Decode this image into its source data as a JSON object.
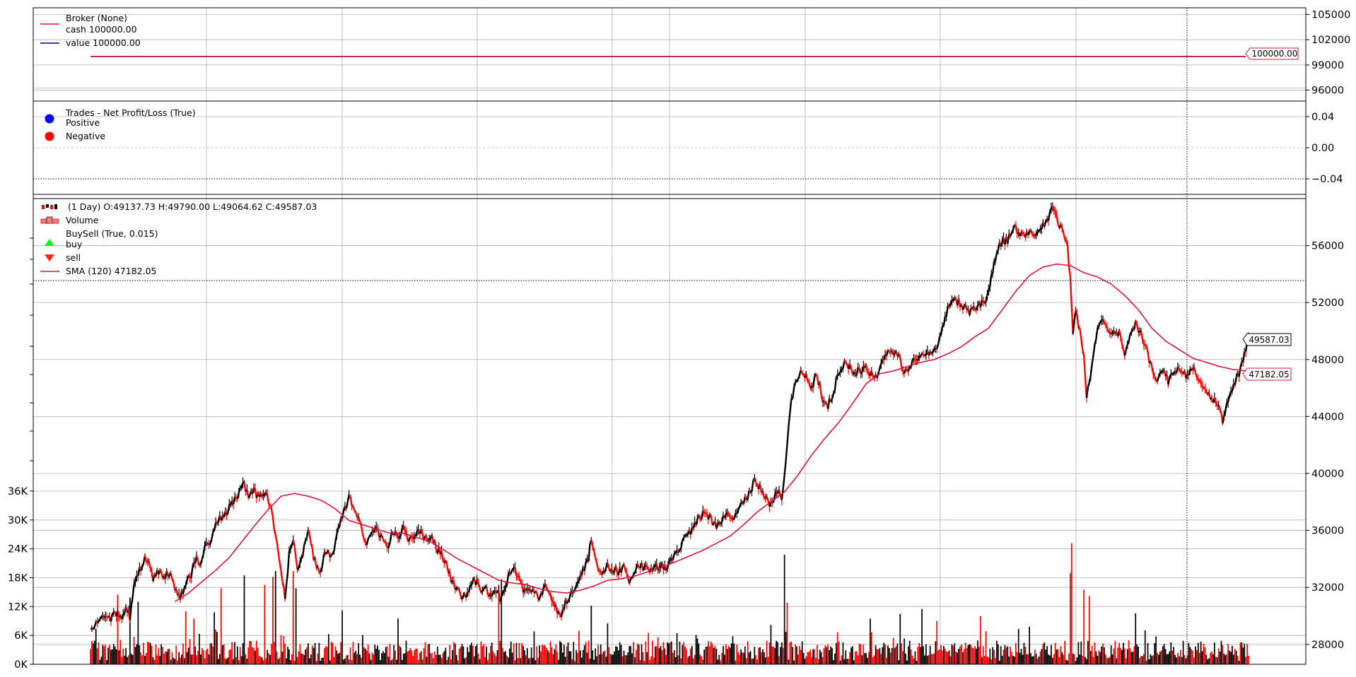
{
  "chart_data": [
    {
      "panel": "broker",
      "type": "line",
      "legend_title": "Broker (None)",
      "legend_location": "top-left",
      "grid": true,
      "y_ticks": [
        "96000",
        "99000",
        "102000",
        "105000"
      ],
      "ylim": [
        94700,
        105800
      ],
      "series": [
        {
          "name": "cash",
          "value_label": "100000.00",
          "color": "#dc143c",
          "values": [
            100000,
            100000
          ]
        },
        {
          "name": "value",
          "value_label": "100000.00",
          "color": "#00008b",
          "values": [
            100000,
            100000
          ]
        }
      ],
      "last_value_label": "100000.00"
    },
    {
      "panel": "trades",
      "type": "scatter",
      "legend_title": "Trades - Net Profit/Loss (True)",
      "legend_location": "top-left",
      "grid": true,
      "y_ticks": [
        "−0.04",
        "0.00",
        "0.04"
      ],
      "ylim": [
        -0.06,
        0.06
      ],
      "series": [
        {
          "name": "Positive",
          "color": "#0000ff",
          "values": []
        },
        {
          "name": "Negative",
          "color": "#ff0000",
          "values": []
        }
      ]
    },
    {
      "panel": "price",
      "type": "line",
      "legend_title": "(1 Day) O:49137.73 H:49790.00 L:49064.62 C:49587.03",
      "legend_location": "top-left",
      "grid": true,
      "legend_entries": [
        "Volume",
        "BuySell (True, 0.015)",
        "buy",
        "sell",
        "SMA (120) 47182.05"
      ],
      "y_ticks": [
        "28000",
        "32000",
        "36000",
        "40000",
        "44000",
        "48000",
        "52000",
        "56000"
      ],
      "ylim": [
        26600,
        59600
      ],
      "volume_ticks": [
        "0K",
        "6K",
        "12K",
        "18K",
        "24K",
        "30K",
        "36K"
      ],
      "volume_lim": [
        0,
        36000
      ],
      "price_anchors": [
        [
          0,
          29100
        ],
        [
          4,
          29600
        ],
        [
          10,
          29700
        ],
        [
          16,
          29900
        ],
        [
          20,
          30300
        ],
        [
          23,
          30000
        ],
        [
          26,
          30600
        ],
        [
          29,
          29900
        ],
        [
          32,
          32000
        ],
        [
          36,
          33200
        ],
        [
          40,
          34200
        ],
        [
          43,
          33700
        ],
        [
          46,
          32500
        ],
        [
          50,
          33200
        ],
        [
          54,
          32800
        ],
        [
          58,
          33100
        ],
        [
          62,
          31900
        ],
        [
          66,
          31300
        ],
        [
          70,
          32300
        ],
        [
          74,
          32900
        ],
        [
          78,
          34100
        ],
        [
          80,
          33500
        ],
        [
          84,
          34800
        ],
        [
          88,
          35200
        ],
        [
          92,
          36300
        ],
        [
          96,
          37000
        ],
        [
          100,
          37200
        ],
        [
          104,
          37900
        ],
        [
          108,
          38300
        ],
        [
          112,
          39600
        ],
        [
          116,
          38400
        ],
        [
          120,
          38800
        ],
        [
          124,
          38200
        ],
        [
          128,
          38700
        ],
        [
          132,
          37900
        ],
        [
          134,
          36900
        ],
        [
          137,
          35300
        ],
        [
          140,
          33000
        ],
        [
          143,
          31200
        ],
        [
          146,
          34400
        ],
        [
          149,
          35300
        ],
        [
          152,
          33200
        ],
        [
          156,
          34200
        ],
        [
          160,
          36200
        ],
        [
          164,
          34200
        ],
        [
          168,
          32900
        ],
        [
          172,
          34200
        ],
        [
          178,
          34300
        ],
        [
          182,
          36200
        ],
        [
          186,
          37100
        ],
        [
          190,
          38300
        ],
        [
          194,
          37600
        ],
        [
          198,
          36800
        ],
        [
          202,
          35000
        ],
        [
          206,
          35600
        ],
        [
          210,
          36200
        ],
        [
          214,
          35500
        ],
        [
          218,
          34700
        ],
        [
          222,
          36000
        ],
        [
          226,
          35700
        ],
        [
          230,
          36100
        ],
        [
          234,
          35400
        ],
        [
          238,
          35500
        ],
        [
          242,
          35900
        ],
        [
          246,
          35300
        ],
        [
          250,
          35600
        ],
        [
          254,
          34800
        ],
        [
          258,
          34300
        ],
        [
          262,
          33400
        ],
        [
          266,
          32300
        ],
        [
          270,
          31800
        ],
        [
          274,
          31300
        ],
        [
          278,
          31800
        ],
        [
          282,
          32600
        ],
        [
          286,
          31900
        ],
        [
          290,
          32000
        ],
        [
          294,
          31400
        ],
        [
          298,
          31800
        ],
        [
          302,
          31100
        ],
        [
          306,
          32400
        ],
        [
          310,
          33200
        ],
        [
          314,
          33000
        ],
        [
          318,
          31800
        ],
        [
          322,
          32100
        ],
        [
          326,
          31500
        ],
        [
          330,
          31200
        ],
        [
          334,
          32000
        ],
        [
          338,
          31600
        ],
        [
          342,
          30500
        ],
        [
          346,
          30200
        ],
        [
          350,
          31100
        ],
        [
          354,
          31700
        ],
        [
          358,
          32500
        ],
        [
          362,
          33200
        ],
        [
          366,
          34100
        ],
        [
          368,
          35400
        ],
        [
          372,
          33600
        ],
        [
          376,
          32700
        ],
        [
          380,
          33500
        ],
        [
          384,
          33300
        ],
        [
          388,
          33100
        ],
        [
          392,
          33400
        ],
        [
          396,
          32500
        ],
        [
          400,
          33100
        ],
        [
          404,
          33600
        ],
        [
          408,
          33300
        ],
        [
          412,
          33100
        ],
        [
          416,
          33400
        ],
        [
          420,
          33500
        ],
        [
          424,
          33400
        ],
        [
          428,
          34200
        ],
        [
          432,
          34500
        ],
        [
          436,
          35400
        ],
        [
          440,
          35800
        ],
        [
          444,
          36400
        ],
        [
          448,
          36900
        ],
        [
          452,
          37300
        ],
        [
          456,
          36800
        ],
        [
          460,
          36400
        ],
        [
          464,
          36700
        ],
        [
          468,
          37100
        ],
        [
          472,
          37000
        ],
        [
          476,
          37400
        ],
        [
          480,
          38100
        ],
        [
          484,
          38600
        ],
        [
          488,
          39400
        ],
        [
          492,
          39000
        ],
        [
          496,
          38200
        ],
        [
          500,
          37800
        ],
        [
          504,
          38700
        ],
        [
          508,
          38400
        ],
        [
          510,
          40000
        ],
        [
          512,
          42300
        ],
        [
          514,
          44500
        ],
        [
          518,
          46200
        ],
        [
          522,
          47300
        ],
        [
          526,
          46700
        ],
        [
          530,
          46100
        ],
        [
          534,
          46900
        ],
        [
          538,
          45300
        ],
        [
          542,
          44800
        ],
        [
          546,
          45700
        ],
        [
          550,
          47200
        ],
        [
          554,
          47600
        ],
        [
          558,
          47400
        ],
        [
          562,
          47100
        ],
        [
          566,
          47200
        ],
        [
          570,
          47500
        ],
        [
          574,
          46900
        ],
        [
          578,
          46700
        ],
        [
          582,
          47800
        ],
        [
          586,
          48700
        ],
        [
          590,
          48500
        ],
        [
          594,
          48300
        ],
        [
          598,
          47100
        ],
        [
          602,
          47600
        ],
        [
          606,
          47900
        ],
        [
          610,
          48300
        ],
        [
          614,
          48600
        ],
        [
          618,
          48200
        ],
        [
          622,
          49000
        ],
        [
          626,
          50200
        ],
        [
          630,
          51500
        ],
        [
          634,
          52200
        ],
        [
          638,
          52000
        ],
        [
          642,
          51700
        ],
        [
          646,
          51400
        ],
        [
          650,
          51600
        ],
        [
          654,
          51900
        ],
        [
          658,
          52100
        ],
        [
          662,
          53800
        ],
        [
          666,
          55700
        ],
        [
          670,
          56300
        ],
        [
          674,
          56400
        ],
        [
          678,
          57300
        ],
        [
          682,
          57000
        ],
        [
          686,
          56600
        ],
        [
          690,
          57100
        ],
        [
          694,
          56600
        ],
        [
          698,
          57300
        ],
        [
          702,
          57500
        ],
        [
          706,
          58600
        ],
        [
          710,
          57900
        ],
        [
          714,
          57100
        ],
        [
          718,
          55900
        ],
        [
          720,
          53800
        ],
        [
          722,
          49700
        ],
        [
          724,
          51600
        ],
        [
          728,
          49400
        ],
        [
          730,
          48200
        ],
        [
          732,
          45500
        ],
        [
          734,
          46200
        ],
        [
          736,
          47800
        ],
        [
          740,
          50100
        ],
        [
          744,
          50900
        ],
        [
          748,
          50200
        ],
        [
          752,
          49800
        ],
        [
          756,
          49900
        ],
        [
          760,
          48400
        ],
        [
          764,
          49600
        ],
        [
          768,
          50700
        ],
        [
          772,
          49700
        ],
        [
          776,
          48700
        ],
        [
          780,
          47400
        ],
        [
          784,
          46600
        ],
        [
          788,
          47300
        ],
        [
          792,
          46500
        ],
        [
          796,
          47200
        ],
        [
          800,
          47500
        ],
        [
          804,
          46900
        ],
        [
          808,
          47300
        ],
        [
          812,
          47200
        ],
        [
          816,
          46200
        ],
        [
          820,
          45600
        ],
        [
          824,
          45300
        ],
        [
          828,
          45000
        ],
        [
          832,
          43600
        ],
        [
          836,
          45000
        ],
        [
          840,
          46300
        ],
        [
          844,
          47000
        ],
        [
          848,
          48400
        ],
        [
          851,
          49587
        ]
      ],
      "sma_anchors": [
        [
          62,
          31000
        ],
        [
          72,
          31600
        ],
        [
          82,
          32400
        ],
        [
          92,
          33200
        ],
        [
          102,
          34100
        ],
        [
          112,
          35300
        ],
        [
          122,
          36500
        ],
        [
          130,
          37400
        ],
        [
          140,
          38400
        ],
        [
          150,
          38600
        ],
        [
          160,
          38400
        ],
        [
          170,
          38100
        ],
        [
          180,
          37500
        ],
        [
          190,
          36700
        ],
        [
          200,
          36400
        ],
        [
          210,
          36100
        ],
        [
          220,
          35800
        ],
        [
          230,
          35800
        ],
        [
          240,
          35500
        ],
        [
          250,
          35200
        ],
        [
          260,
          34600
        ],
        [
          270,
          34000
        ],
        [
          280,
          33500
        ],
        [
          290,
          33000
        ],
        [
          300,
          32500
        ],
        [
          310,
          32300
        ],
        [
          320,
          32200
        ],
        [
          330,
          31900
        ],
        [
          340,
          31700
        ],
        [
          350,
          31600
        ],
        [
          360,
          31800
        ],
        [
          370,
          32100
        ],
        [
          380,
          32500
        ],
        [
          390,
          32600
        ],
        [
          400,
          32800
        ],
        [
          410,
          33100
        ],
        [
          420,
          33400
        ],
        [
          430,
          33800
        ],
        [
          440,
          34200
        ],
        [
          450,
          34600
        ],
        [
          460,
          35100
        ],
        [
          470,
          35600
        ],
        [
          480,
          36400
        ],
        [
          490,
          37300
        ],
        [
          500,
          38000
        ],
        [
          510,
          38700
        ],
        [
          520,
          39900
        ],
        [
          530,
          41300
        ],
        [
          540,
          42500
        ],
        [
          550,
          43600
        ],
        [
          560,
          44900
        ],
        [
          570,
          46300
        ],
        [
          580,
          47000
        ],
        [
          590,
          47200
        ],
        [
          600,
          47500
        ],
        [
          610,
          47800
        ],
        [
          620,
          48000
        ],
        [
          630,
          48400
        ],
        [
          640,
          48900
        ],
        [
          650,
          49600
        ],
        [
          660,
          50200
        ],
        [
          670,
          51500
        ],
        [
          680,
          52800
        ],
        [
          690,
          53900
        ],
        [
          700,
          54500
        ],
        [
          710,
          54700
        ],
        [
          720,
          54600
        ],
        [
          730,
          54100
        ],
        [
          740,
          53800
        ],
        [
          750,
          53300
        ],
        [
          760,
          52500
        ],
        [
          770,
          51500
        ],
        [
          780,
          50200
        ],
        [
          790,
          49300
        ],
        [
          800,
          48700
        ],
        [
          810,
          48100
        ],
        [
          820,
          47800
        ],
        [
          830,
          47500
        ],
        [
          840,
          47300
        ],
        [
          851,
          47182
        ]
      ],
      "volume_spikes": [
        [
          20,
          14500
        ],
        [
          29,
          13900
        ],
        [
          35,
          13000
        ],
        [
          70,
          11000
        ],
        [
          76,
          9500
        ],
        [
          91,
          10800
        ],
        [
          96,
          15800
        ],
        [
          113,
          18500
        ],
        [
          128,
          16500
        ],
        [
          134,
          18200
        ],
        [
          136,
          19400
        ],
        [
          149,
          19400
        ],
        [
          151,
          15800
        ],
        [
          185,
          11200
        ],
        [
          226,
          9500
        ],
        [
          300,
          16600
        ],
        [
          302,
          17700
        ],
        [
          368,
          12200
        ],
        [
          380,
          8500
        ],
        [
          500,
          8200
        ],
        [
          510,
          22800
        ],
        [
          512,
          12800
        ],
        [
          573,
          9500
        ],
        [
          595,
          10500
        ],
        [
          611,
          11500
        ],
        [
          622,
          9000
        ],
        [
          654,
          10000
        ],
        [
          690,
          7800
        ],
        [
          720,
          19000
        ],
        [
          721,
          25200
        ],
        [
          730,
          15500
        ],
        [
          734,
          14200
        ],
        [
          768,
          10600
        ]
      ],
      "total_bars": 852,
      "last_close_label": "49587.03",
      "last_sma_label": "47182.05"
    }
  ]
}
